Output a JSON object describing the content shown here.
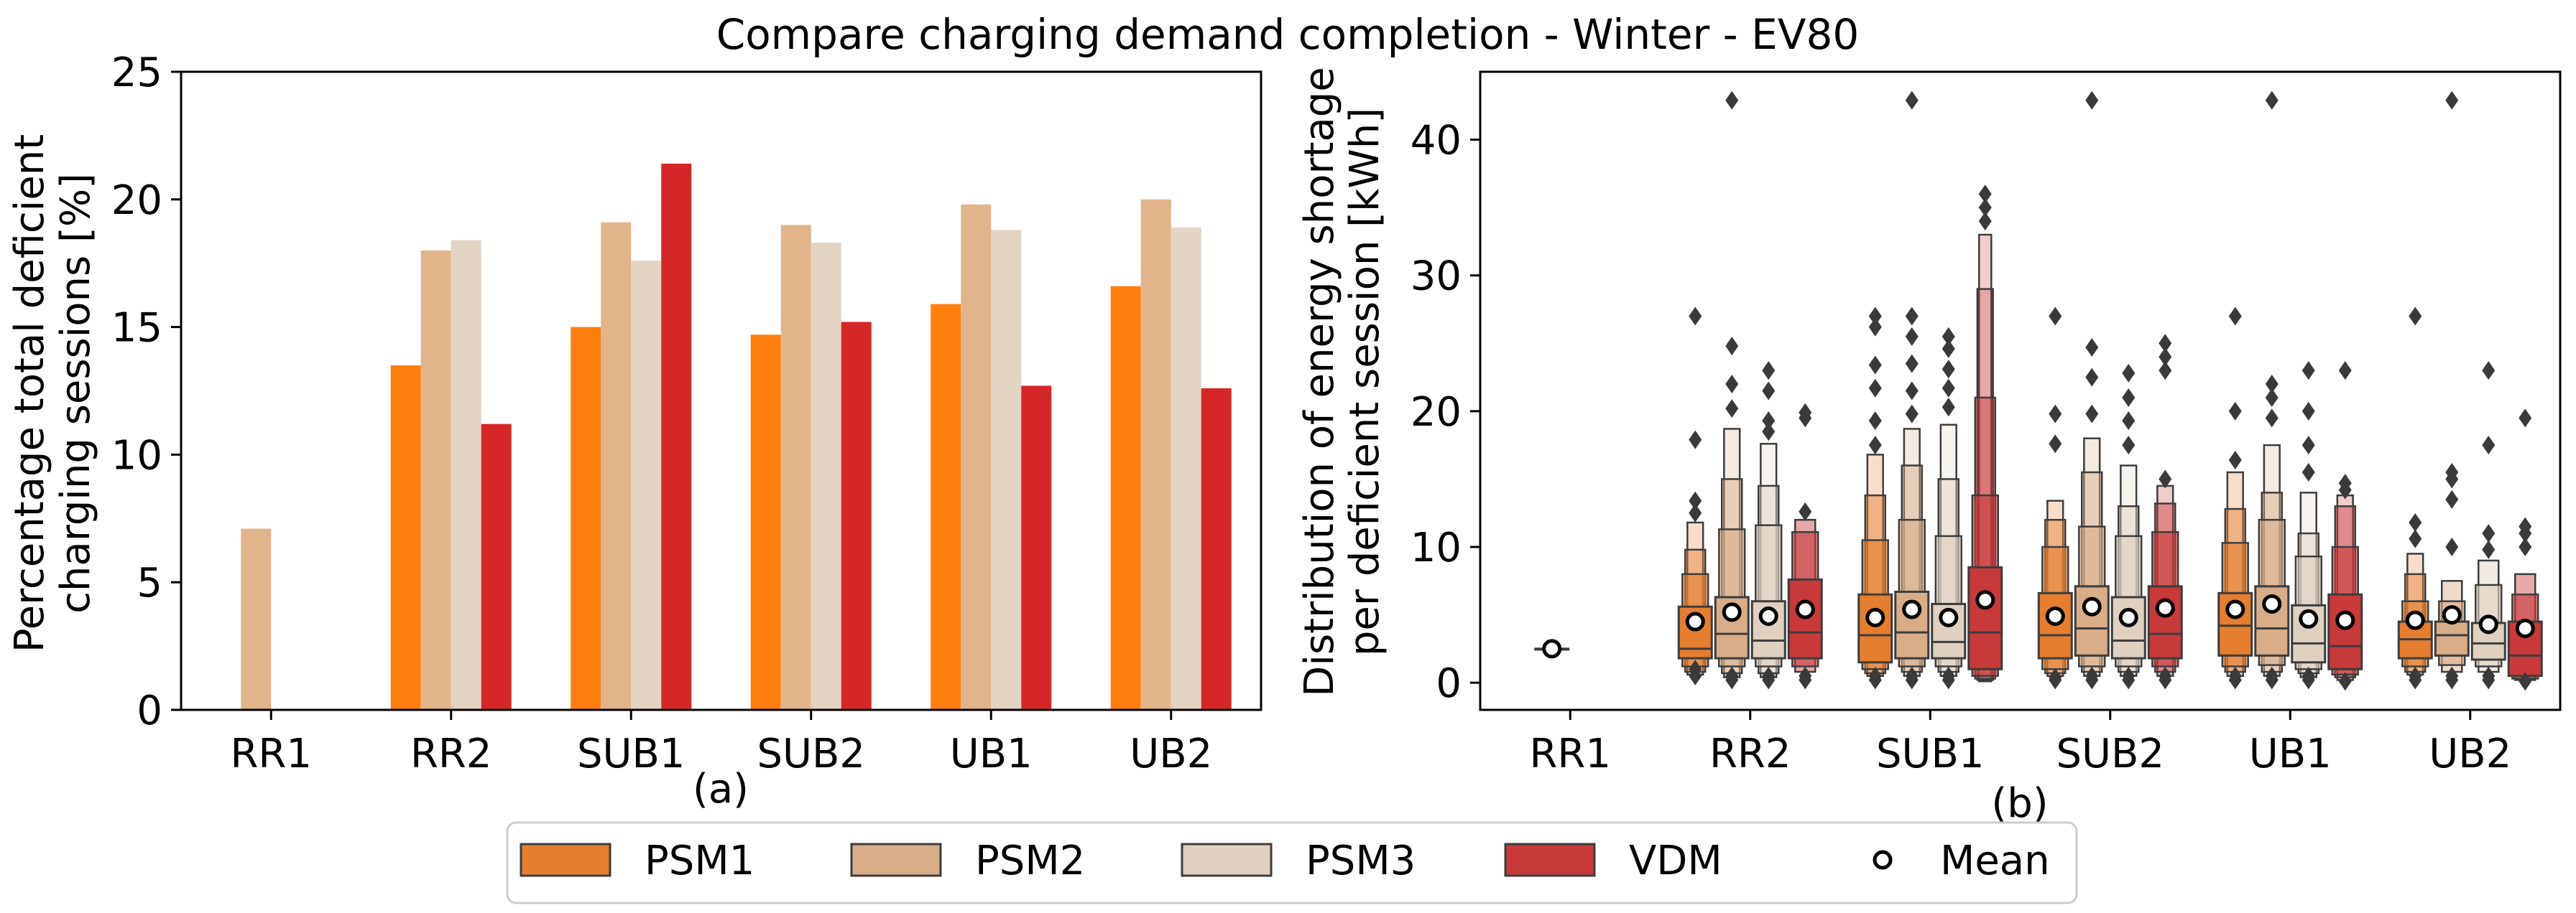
{
  "title": "Compare charging demand completion - Winter - EV80",
  "colors": {
    "PSM1": "#ff7f0e",
    "PSM2": "#e1b48a",
    "PSM3": "#e2d3c3",
    "VDM": "#d62728",
    "PSM1_box": "#e57e2e",
    "PSM2_box": "#d8ad88",
    "PSM3_box": "#dfd0c0",
    "VDM_box": "#c8393a",
    "outlier": "#3a3a3a",
    "box_edge": "#3d3d3d"
  },
  "chart_data": [
    {
      "type": "bar",
      "panel_label": "(a)",
      "title": "",
      "xlabel": "",
      "ylabel_lines": [
        "Percentage total deficient",
        "charging sessions [%]"
      ],
      "ylim": [
        0,
        25
      ],
      "yticks": [
        0,
        5,
        10,
        15,
        20,
        25
      ],
      "grid": false,
      "categories": [
        "RR1",
        "RR2",
        "SUB1",
        "SUB2",
        "UB1",
        "UB2"
      ],
      "series": [
        {
          "name": "PSM1",
          "values": [
            0,
            13.5,
            15.0,
            14.7,
            15.9,
            16.6
          ]
        },
        {
          "name": "PSM2",
          "values": [
            7.1,
            18.0,
            19.1,
            19.0,
            19.8,
            20.0
          ]
        },
        {
          "name": "PSM3",
          "values": [
            0,
            18.4,
            17.6,
            18.3,
            18.8,
            18.9
          ]
        },
        {
          "name": "VDM",
          "values": [
            0,
            11.2,
            21.4,
            15.2,
            12.7,
            12.6
          ]
        }
      ]
    },
    {
      "type": "boxplot",
      "panel_label": "(b)",
      "title": "",
      "xlabel": "",
      "ylabel_lines": [
        "Distribution of energy shortage",
        "per deficient session [kWh]"
      ],
      "ylim": [
        -2,
        45
      ],
      "yticks": [
        0,
        10,
        20,
        30,
        40
      ],
      "grid": false,
      "categories": [
        "RR1",
        "RR2",
        "SUB1",
        "SUB2",
        "UB1",
        "UB2"
      ],
      "series": [
        {
          "name": "PSM1",
          "boxes": [
            null,
            {
              "q1": 1.8,
              "median": 2.5,
              "q3": 5.6,
              "mean": 4.5,
              "inner": [
                [
                  1.2,
                  8.0
                ],
                [
                  0.8,
                  9.8
                ],
                [
                  0.6,
                  11.8
                ]
              ],
              "outliers": [
                0.5,
                1.0,
                12.5,
                13.4,
                17.9,
                27.0
              ]
            },
            {
              "q1": 1.5,
              "median": 3.5,
              "q3": 6.5,
              "mean": 4.8,
              "inner": [
                [
                  1.0,
                  10.5
                ],
                [
                  0.7,
                  13.8
                ],
                [
                  0.5,
                  16.8
                ]
              ],
              "outliers": [
                0.2,
                0.5,
                17.5,
                19.3,
                21.7,
                23.4,
                26.2,
                27.0
              ]
            },
            {
              "q1": 1.8,
              "median": 3.5,
              "q3": 6.6,
              "mean": 4.9,
              "inner": [
                [
                  1.0,
                  10.0
                ],
                [
                  0.7,
                  12.0
                ],
                [
                  0.5,
                  13.4
                ]
              ],
              "outliers": [
                0.2,
                0.4,
                17.6,
                19.8,
                27.0
              ]
            },
            {
              "q1": 2.0,
              "median": 4.2,
              "q3": 6.6,
              "mean": 5.4,
              "inner": [
                [
                  1.2,
                  10.3
                ],
                [
                  0.8,
                  12.8
                ],
                [
                  0.5,
                  15.5
                ]
              ],
              "outliers": [
                0.2,
                0.5,
                16.4,
                20.0,
                27.0
              ]
            },
            {
              "q1": 1.8,
              "median": 3.2,
              "q3": 4.5,
              "mean": 4.6,
              "inner": [
                [
                  1.2,
                  6.0
                ],
                [
                  0.8,
                  8.0
                ],
                [
                  0.6,
                  9.5
                ]
              ],
              "outliers": [
                0.2,
                0.5,
                10.6,
                11.8,
                27.0
              ]
            }
          ]
        },
        {
          "name": "PSM2",
          "boxes": [
            {
              "q1": 2.5,
              "median": 2.5,
              "q3": 2.5,
              "mean": 2.5,
              "inner": [
                [
                  2.5,
                  2.5
                ]
              ],
              "outliers": []
            },
            {
              "q1": 1.8,
              "median": 3.6,
              "q3": 6.3,
              "mean": 5.2,
              "inner": [
                [
                  1.2,
                  11.3
                ],
                [
                  0.7,
                  15.0
                ],
                [
                  0.4,
                  18.7
                ]
              ],
              "outliers": [
                0.2,
                0.5,
                20.2,
                22.0,
                24.8,
                42.9
              ]
            },
            {
              "q1": 1.8,
              "median": 3.7,
              "q3": 6.7,
              "mean": 5.4,
              "inner": [
                [
                  1.2,
                  12.0
                ],
                [
                  0.8,
                  16.0
                ],
                [
                  0.5,
                  18.7
                ]
              ],
              "outliers": [
                0.2,
                0.5,
                19.8,
                21.5,
                23.5,
                25.5,
                27.0,
                42.9
              ]
            },
            {
              "q1": 2.0,
              "median": 4.0,
              "q3": 7.1,
              "mean": 5.6,
              "inner": [
                [
                  1.2,
                  11.5
                ],
                [
                  0.8,
                  15.5
                ],
                [
                  0.5,
                  18.0
                ]
              ],
              "outliers": [
                0.2,
                0.5,
                19.8,
                22.5,
                24.7,
                42.9
              ]
            },
            {
              "q1": 2.0,
              "median": 4.0,
              "q3": 7.1,
              "mean": 5.8,
              "inner": [
                [
                  1.3,
                  12.0
                ],
                [
                  0.8,
                  14.0
                ],
                [
                  0.5,
                  17.5
                ]
              ],
              "outliers": [
                0.2,
                0.5,
                19.5,
                21.0,
                22.0,
                42.9
              ]
            },
            {
              "q1": 2.0,
              "median": 3.5,
              "q3": 4.5,
              "mean": 5.0,
              "inner": [
                [
                  1.3,
                  6.0
                ],
                [
                  0.8,
                  7.5
                ]
              ],
              "outliers": [
                0.2,
                0.5,
                10.0,
                13.5,
                15.0,
                15.5,
                42.9
              ]
            }
          ]
        },
        {
          "name": "PSM3",
          "boxes": [
            null,
            {
              "q1": 1.8,
              "median": 3.1,
              "q3": 6.0,
              "mean": 4.9,
              "inner": [
                [
                  1.2,
                  11.6
                ],
                [
                  0.7,
                  14.5
                ],
                [
                  0.4,
                  17.6
                ]
              ],
              "outliers": [
                0.2,
                0.5,
                18.5,
                19.3,
                21.5,
                23.0
              ]
            },
            {
              "q1": 1.8,
              "median": 3.0,
              "q3": 5.8,
              "mean": 4.8,
              "inner": [
                [
                  1.2,
                  10.8
                ],
                [
                  0.8,
                  15.0
                ],
                [
                  0.5,
                  19.0
                ]
              ],
              "outliers": [
                0.2,
                0.5,
                20.3,
                21.7,
                23.1,
                24.6,
                25.5
              ]
            },
            {
              "q1": 1.8,
              "median": 3.1,
              "q3": 6.3,
              "mean": 4.8,
              "inner": [
                [
                  1.2,
                  10.8
                ],
                [
                  0.8,
                  13.0
                ],
                [
                  0.5,
                  16.0
                ]
              ],
              "outliers": [
                0.2,
                0.5,
                17.5,
                19.3,
                21.0,
                22.8
              ]
            },
            {
              "q1": 1.5,
              "median": 2.9,
              "q3": 5.7,
              "mean": 4.7,
              "inner": [
                [
                  1.0,
                  9.3
                ],
                [
                  0.7,
                  11.0
                ],
                [
                  0.4,
                  14.0
                ]
              ],
              "outliers": [
                0.2,
                0.5,
                15.5,
                17.5,
                20.0,
                23.0
              ]
            },
            {
              "q1": 1.7,
              "median": 2.9,
              "q3": 4.4,
              "mean": 4.3,
              "inner": [
                [
                  1.2,
                  7.2
                ],
                [
                  0.8,
                  9.0
                ]
              ],
              "outliers": [
                0.2,
                0.5,
                9.8,
                11.0,
                17.5,
                23.0
              ]
            }
          ]
        },
        {
          "name": "VDM",
          "boxes": [
            null,
            {
              "q1": 1.8,
              "median": 3.7,
              "q3": 7.6,
              "mean": 5.4,
              "inner": [
                [
                  1.2,
                  11.1
                ],
                [
                  0.8,
                  12.0
                ]
              ],
              "outliers": [
                0.2,
                0.5,
                12.6,
                19.5,
                19.9
              ]
            },
            {
              "q1": 1.0,
              "median": 3.7,
              "q3": 8.5,
              "mean": 6.1,
              "inner": [
                [
                  0.5,
                  13.8
                ],
                [
                  0.3,
                  21.0
                ],
                [
                  0.2,
                  29.0
                ],
                [
                  0.1,
                  33.0
                ]
              ],
              "outliers": [
                34.0,
                35.0,
                36.0
              ]
            },
            {
              "q1": 1.8,
              "median": 3.6,
              "q3": 7.1,
              "mean": 5.5,
              "inner": [
                [
                  1.2,
                  11.1
                ],
                [
                  0.8,
                  13.2
                ],
                [
                  0.5,
                  14.5
                ]
              ],
              "outliers": [
                0.2,
                0.5,
                15.0,
                23.0,
                24.0,
                25.0
              ]
            },
            {
              "q1": 1.0,
              "median": 2.7,
              "q3": 6.5,
              "mean": 4.6,
              "inner": [
                [
                  0.6,
                  10.0
                ],
                [
                  0.4,
                  13.0
                ],
                [
                  0.2,
                  13.8
                ]
              ],
              "outliers": [
                0.1,
                14.2,
                14.7,
                23.0
              ]
            },
            {
              "q1": 0.5,
              "median": 2.0,
              "q3": 4.5,
              "mean": 4.0,
              "inner": [
                [
                  0.3,
                  6.5
                ],
                [
                  0.2,
                  8.0
                ]
              ],
              "outliers": [
                0.1,
                10.0,
                11.0,
                11.5,
                19.5
              ]
            }
          ]
        }
      ]
    }
  ],
  "legend": {
    "placement": "bottom-center",
    "items": [
      {
        "label": "PSM1",
        "kind": "patch",
        "color_key": "PSM1_box"
      },
      {
        "label": "PSM2",
        "kind": "patch",
        "color_key": "PSM2_box"
      },
      {
        "label": "PSM3",
        "kind": "patch",
        "color_key": "PSM3_box"
      },
      {
        "label": "VDM",
        "kind": "patch",
        "color_key": "VDM_box"
      },
      {
        "label": "Mean",
        "kind": "marker",
        "color_key": ""
      }
    ]
  }
}
